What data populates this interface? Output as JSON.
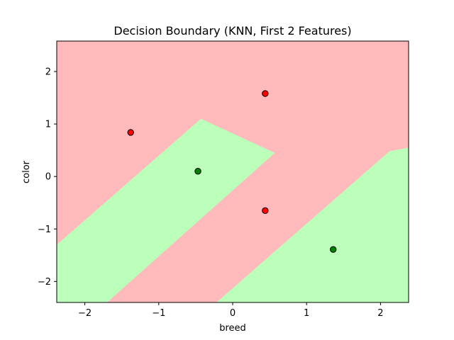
{
  "chart_data": {
    "type": "scatter",
    "title": "Decision Boundary (KNN, First 2 Features)",
    "xlabel": "breed",
    "ylabel": "color",
    "xlim": [
      -2.38,
      2.38
    ],
    "ylim": [
      -2.4,
      2.58
    ],
    "xticks": [
      -2,
      -1,
      0,
      1,
      2
    ],
    "yticks": [
      -2,
      -1,
      0,
      1,
      2
    ],
    "xtick_labels": [
      "−2",
      "−1",
      "0",
      "1",
      "2"
    ],
    "ytick_labels": [
      "−2",
      "−1",
      "0",
      "1",
      "2"
    ],
    "grid": false,
    "colors": {
      "region_red": "#ffbbbb",
      "region_green": "#bbffbb",
      "point_red": "#ff0000",
      "point_green": "#008000",
      "point_edge": "#000000"
    },
    "regions": [
      {
        "class": "green",
        "polygon": [
          [
            -2.38,
            -1.3
          ],
          [
            -0.43,
            1.1
          ],
          [
            0.57,
            0.45
          ],
          [
            -1.7,
            -2.4
          ],
          [
            -2.38,
            -2.4
          ]
        ]
      },
      {
        "class": "green",
        "polygon": [
          [
            -0.22,
            -2.4
          ],
          [
            2.12,
            0.48
          ],
          [
            2.38,
            0.55
          ],
          [
            2.38,
            -2.4
          ]
        ]
      }
    ],
    "points": [
      {
        "x": -1.38,
        "y": 0.84,
        "class": "red"
      },
      {
        "x": 0.44,
        "y": 1.58,
        "class": "red"
      },
      {
        "x": -0.47,
        "y": 0.1,
        "class": "green"
      },
      {
        "x": 0.44,
        "y": -0.65,
        "class": "red"
      },
      {
        "x": 1.36,
        "y": -1.39,
        "class": "green"
      }
    ]
  }
}
